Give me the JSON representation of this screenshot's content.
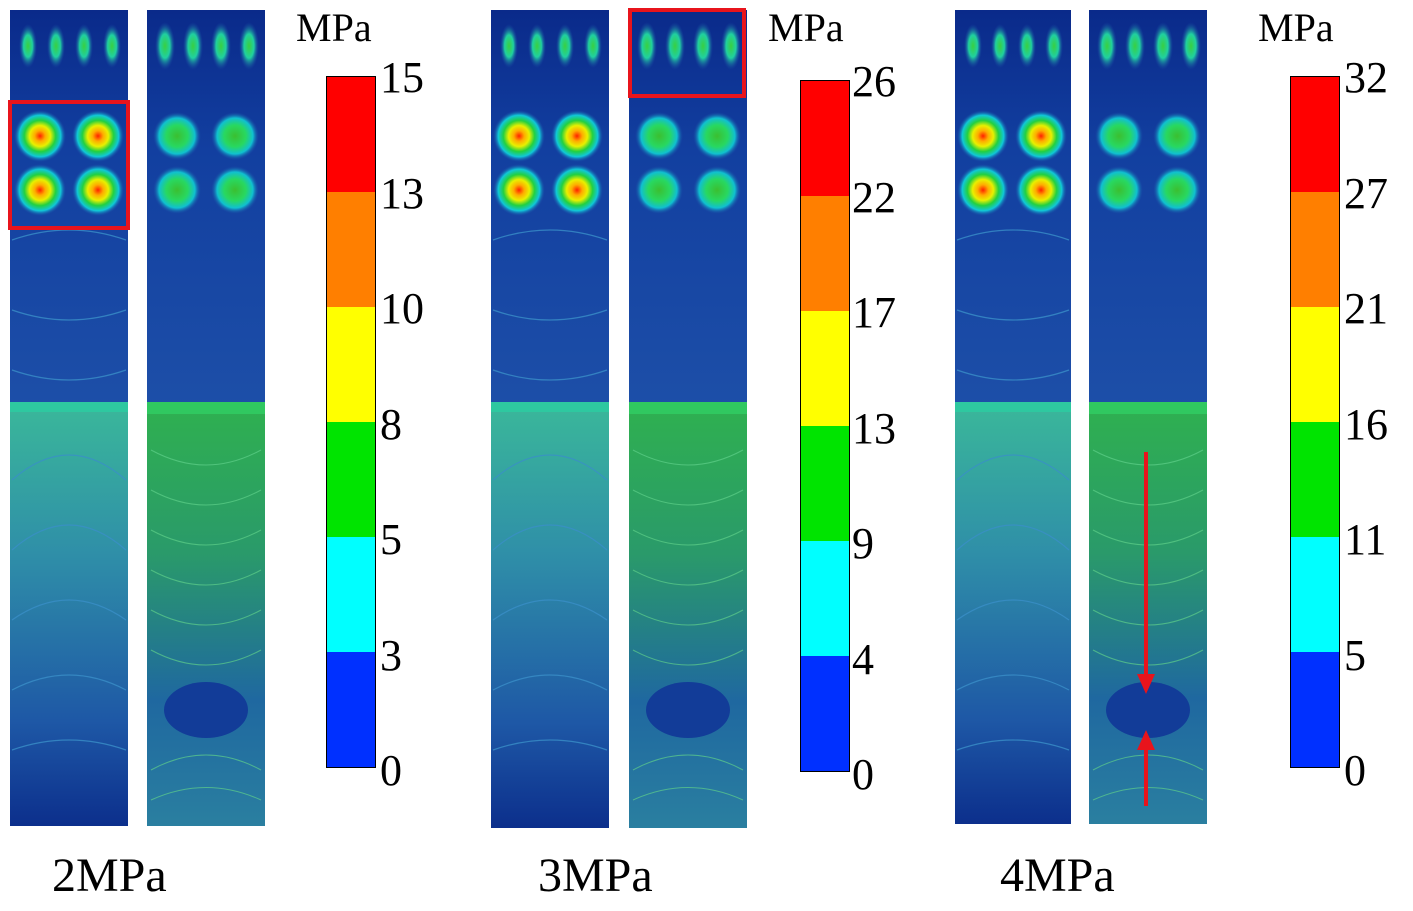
{
  "panels": [
    {
      "caption": "2MPa",
      "unit": "MPa",
      "ticks": [
        "15",
        "13",
        "10",
        "8",
        "5",
        "3",
        "0"
      ]
    },
    {
      "caption": "3MPa",
      "unit": "MPa",
      "ticks": [
        "26",
        "22",
        "17",
        "13",
        "9",
        "4",
        "0"
      ]
    },
    {
      "caption": "4MPa",
      "unit": "MPa",
      "ticks": [
        "32",
        "27",
        "21",
        "16",
        "11",
        "5",
        "0"
      ]
    }
  ],
  "colorbar_colors": [
    "#ff0000",
    "#ff7f00",
    "#ffff00",
    "#00e400",
    "#00ffff",
    "#0030ff"
  ]
}
